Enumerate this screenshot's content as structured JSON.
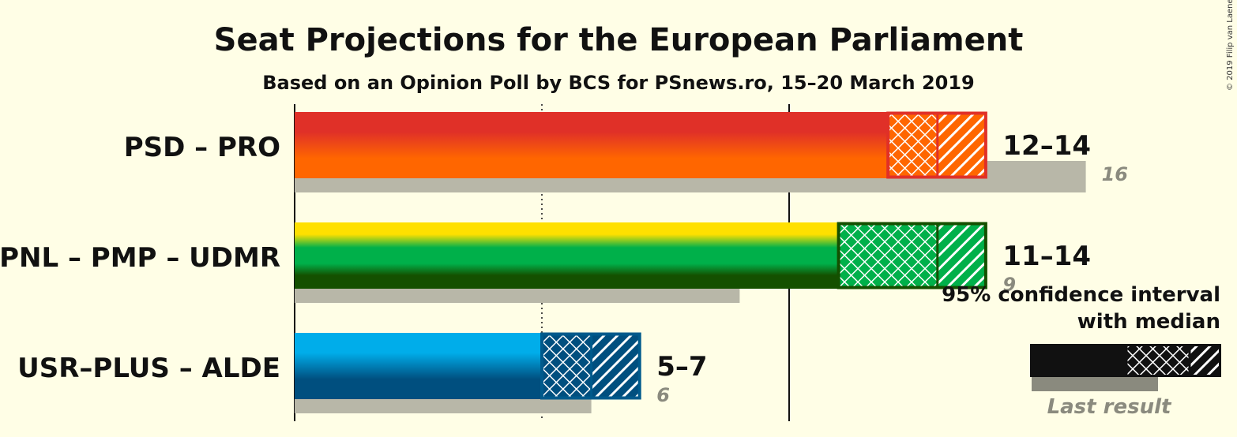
{
  "title": "Seat Projections for the European Parliament",
  "subtitle": "Based on an Opinion Poll by BCS for PSnews.ro, 15–20 March 2019",
  "copyright": "© 2019 Filip van Laenen",
  "legend": {
    "ci_label_line1": "95% confidence interval",
    "ci_label_line2": "with median",
    "last_result_label": "Last result"
  },
  "chart_data": {
    "type": "bar",
    "orientation": "horizontal",
    "title": "Seat Projections for the European Parliament",
    "subtitle": "Based on an Opinion Poll by BCS for PSnews.ro, 15–20 March 2019",
    "xlim": [
      0,
      16
    ],
    "gridlines": [
      5,
      10
    ],
    "categories": [
      "PSD – PRO",
      "PNL – PMP – UDMR",
      "USR–PLUS – ALDE"
    ],
    "series": [
      {
        "party": "PSD – PRO",
        "ci_low": 12,
        "median": 13,
        "ci_high": 14,
        "range_label": "12–14",
        "last_result": 16,
        "last_result_label": "16",
        "colors": {
          "top": "#E03028",
          "bottom": "#FF6600",
          "border": "#E03028"
        }
      },
      {
        "party": "PNL – PMP – UDMR",
        "ci_low": 11,
        "median": 13,
        "ci_high": 14,
        "range_label": "11–14",
        "last_result": 9,
        "last_result_label": "9",
        "colors": {
          "top": "#FFE000",
          "mid": "#00B04A",
          "bottom": "#145000",
          "border": "#145000"
        }
      },
      {
        "party": "USR–PLUS – ALDE",
        "ci_low": 5,
        "median": 6,
        "ci_high": 7,
        "range_label": "5–7",
        "last_result": 6,
        "last_result_label": "6",
        "colors": {
          "top": "#00ADEA",
          "bottom": "#004F7F",
          "border": "#005A8C"
        }
      }
    ]
  }
}
